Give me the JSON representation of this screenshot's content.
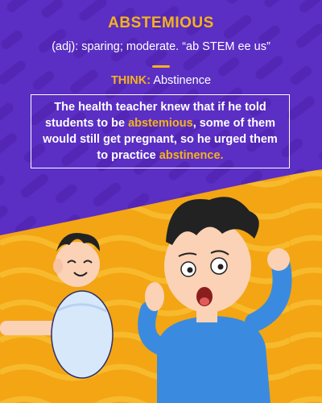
{
  "card": {
    "word": "ABSTEMIOUS",
    "definition": "(adj): sparing; moderate. “ab STEM ee us”",
    "think_label": "THINK:",
    "think_word": "Abstinence",
    "sentence": {
      "part1": "The health teacher knew that if he told students to be ",
      "highlight1": "abstemious",
      "part2": ", some of them would still get pregnant, so he urged them to practice ",
      "highlight2": "abstinence."
    }
  },
  "colors": {
    "background_top": "#5b2ec4",
    "background_bottom": "#f2a414",
    "accent": "#f4b31c",
    "text": "#ffffff",
    "shirt": "#3a8be0",
    "hair": "#222222",
    "skin": "#fbd2b6",
    "blanket": "#d7e8fa"
  },
  "illustration": {
    "icons": [
      "worried-teenager",
      "swaddled-baby",
      "holding-hand"
    ]
  }
}
